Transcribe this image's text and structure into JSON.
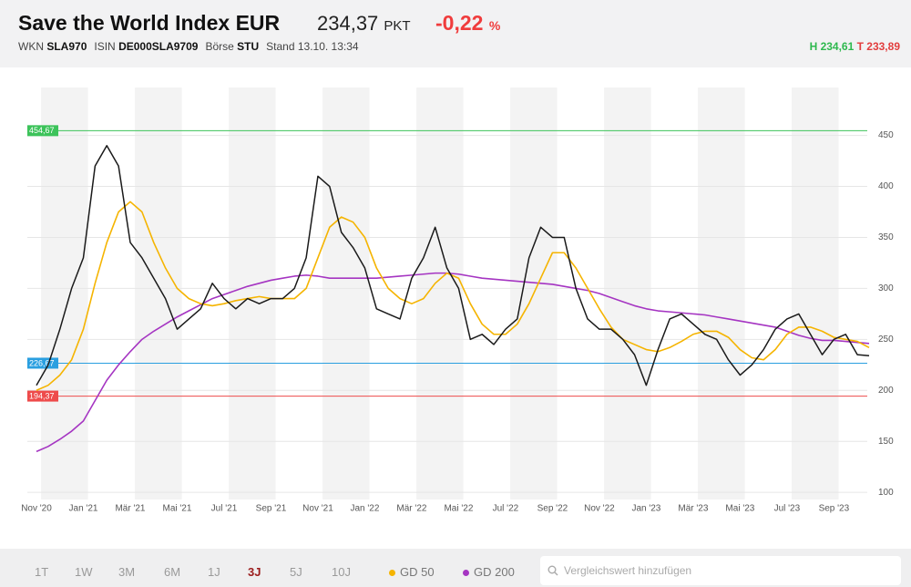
{
  "header": {
    "title": "Save the World Index EUR",
    "price": "234,37",
    "unit": "PKT",
    "change": "-0,22",
    "change_unit": "%",
    "meta": [
      {
        "label": "WKN",
        "value": "SLA970"
      },
      {
        "label": "ISIN",
        "value": "DE000SLA9709"
      },
      {
        "label": "Börse",
        "value": "STU"
      }
    ],
    "stand": "Stand 13.10. 13:34",
    "high": "H 234,61",
    "low": "T 233,89"
  },
  "chart_data": {
    "type": "line",
    "categories": [
      "Nov '20",
      null,
      null,
      null,
      "Jan '21",
      null,
      null,
      null,
      "Mär '21",
      null,
      null,
      null,
      "Mai '21",
      null,
      null,
      null,
      "Jul '21",
      null,
      null,
      null,
      "Sep '21",
      null,
      null,
      null,
      "Nov '21",
      null,
      null,
      null,
      "Jan '22",
      null,
      null,
      null,
      "Mär '22",
      null,
      null,
      null,
      "Mai '22",
      null,
      null,
      null,
      "Jul '22",
      null,
      null,
      null,
      "Sep '22",
      null,
      null,
      null,
      "Nov '22",
      null,
      null,
      null,
      "Jan '23",
      null,
      null,
      null,
      "Mär '23",
      null,
      null,
      null,
      "Mai '23",
      null,
      null,
      null,
      "Jul '23",
      null,
      null,
      null,
      "Sep '23",
      null,
      null,
      null
    ],
    "series": [
      {
        "color": "#1a1a1a",
        "values": [
          205,
          225,
          260,
          300,
          330,
          420,
          440,
          420,
          345,
          330,
          310,
          290,
          260,
          270,
          280,
          305,
          290,
          280,
          290,
          285,
          290,
          290,
          300,
          330,
          410,
          400,
          355,
          340,
          320,
          280,
          275,
          270,
          310,
          330,
          360,
          320,
          300,
          250,
          255,
          245,
          260,
          270,
          330,
          360,
          350,
          350,
          300,
          270,
          260,
          260,
          250,
          235,
          205,
          240,
          270,
          275,
          265,
          255,
          250,
          230,
          215,
          225,
          240,
          260,
          270,
          275,
          255,
          235,
          250,
          255,
          235,
          234
        ]
      },
      {
        "name": "GD 50",
        "color": "#f5b400",
        "values": [
          200,
          205,
          215,
          230,
          260,
          305,
          345,
          375,
          385,
          375,
          345,
          320,
          300,
          290,
          285,
          283,
          285,
          288,
          290,
          292,
          290,
          290,
          290,
          300,
          330,
          360,
          370,
          365,
          350,
          320,
          300,
          290,
          285,
          290,
          305,
          315,
          310,
          285,
          265,
          255,
          255,
          265,
          285,
          310,
          335,
          335,
          320,
          300,
          280,
          262,
          250,
          245,
          240,
          238,
          242,
          248,
          255,
          258,
          258,
          252,
          240,
          232,
          230,
          240,
          255,
          262,
          262,
          258,
          252,
          250,
          248,
          242
        ]
      },
      {
        "name": "GD 200",
        "color": "#a535c2",
        "values": [
          140,
          145,
          152,
          160,
          170,
          190,
          210,
          225,
          238,
          250,
          258,
          265,
          272,
          278,
          284,
          290,
          294,
          298,
          302,
          305,
          308,
          310,
          312,
          313,
          312,
          310,
          310,
          310,
          310,
          310,
          311,
          312,
          313,
          314,
          315,
          315,
          314,
          312,
          310,
          309,
          308,
          307,
          306,
          305,
          304,
          302,
          300,
          298,
          295,
          291,
          287,
          283,
          280,
          278,
          277,
          276,
          275,
          274,
          272,
          270,
          268,
          266,
          264,
          262,
          258,
          254,
          251,
          249,
          249,
          248,
          247,
          246
        ]
      }
    ],
    "reference_lines": [
      {
        "value": 454.67,
        "label": "454,67",
        "color": "#3cc35a"
      },
      {
        "value": 226.67,
        "label": "226,67",
        "color": "#2a9fe0"
      },
      {
        "value": 194.37,
        "label": "194,37",
        "color": "#ee4b4b"
      }
    ],
    "ylim": [
      93,
      497
    ],
    "yticks": [
      100,
      150,
      200,
      250,
      300,
      350,
      400,
      450
    ],
    "grid": true
  },
  "controls": {
    "ranges": [
      "1T",
      "1W",
      "3M",
      "6M",
      "1J",
      "3J",
      "5J",
      "10J"
    ],
    "active_range": 5,
    "search_placeholder": "Vergleichswert hinzufügen"
  }
}
